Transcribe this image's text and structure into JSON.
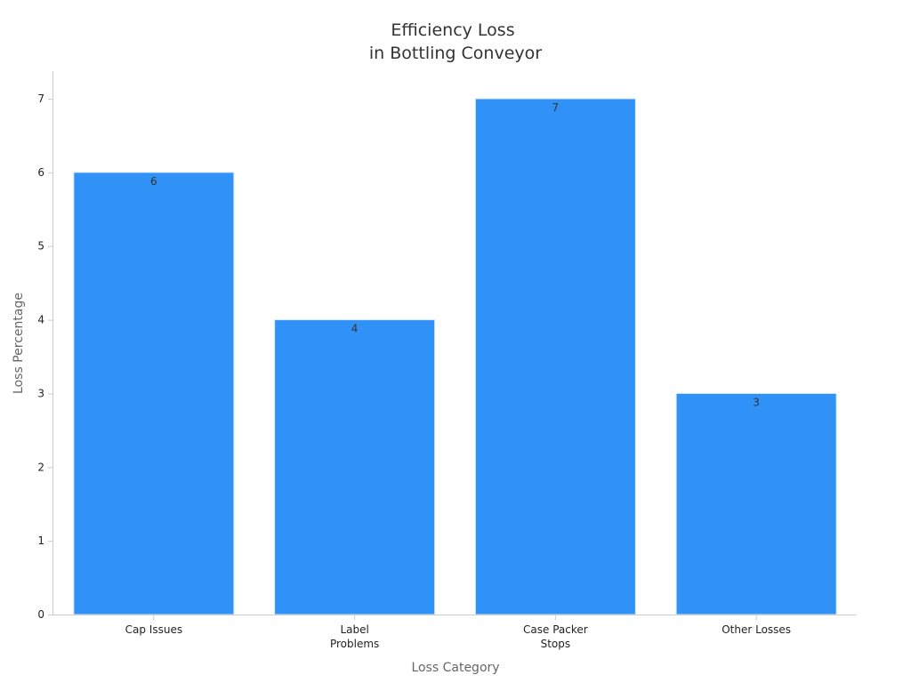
{
  "chart_data": {
    "type": "bar",
    "title": [
      "Efficiency Loss",
      "in Bottling Conveyor"
    ],
    "xlabel": "Loss Category",
    "ylabel": "Loss Percentage",
    "categories": [
      [
        "Cap Issues"
      ],
      [
        "Label",
        "Problems"
      ],
      [
        "Case Packer",
        "Stops"
      ],
      [
        "Other Losses"
      ]
    ],
    "values": [
      6,
      4,
      7,
      3
    ],
    "ylim": [
      0,
      7
    ],
    "yticks": [
      0,
      1,
      2,
      3,
      4,
      5,
      6,
      7
    ],
    "grid": false,
    "legend": "none",
    "bar_color": "#3092f7",
    "bar_edge_color": "#d6e9fd",
    "show_data_labels": true
  }
}
